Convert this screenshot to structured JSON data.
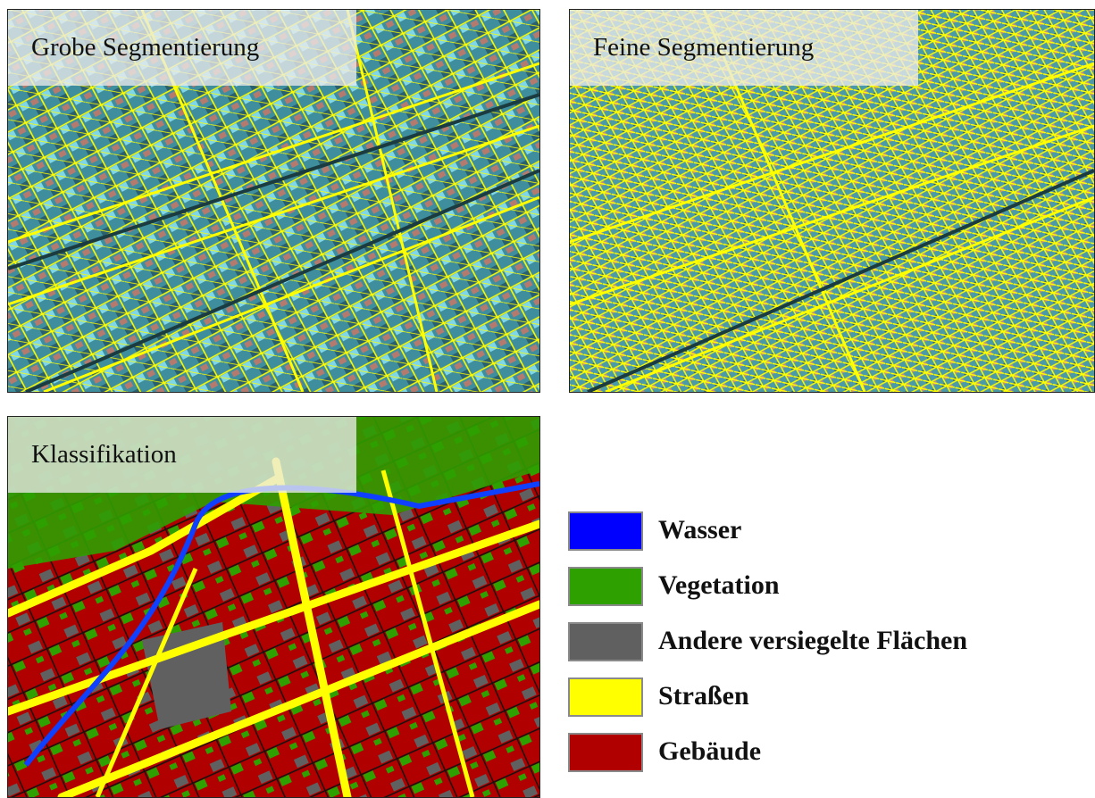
{
  "panels": {
    "coarse": {
      "title": "Grobe Segmentierung"
    },
    "fine": {
      "title": "Feine Segmentierung"
    },
    "classification": {
      "title": "Klassifikation"
    }
  },
  "legend": [
    {
      "label": "Wasser",
      "color": "#0000ff"
    },
    {
      "label": "Vegetation",
      "color": "#2ea000"
    },
    {
      "label": "Andere versiegelte Flächen",
      "color": "#606060"
    },
    {
      "label": "Straßen",
      "color": "#ffff00"
    },
    {
      "label": "Gebäude",
      "color": "#b00000"
    }
  ]
}
